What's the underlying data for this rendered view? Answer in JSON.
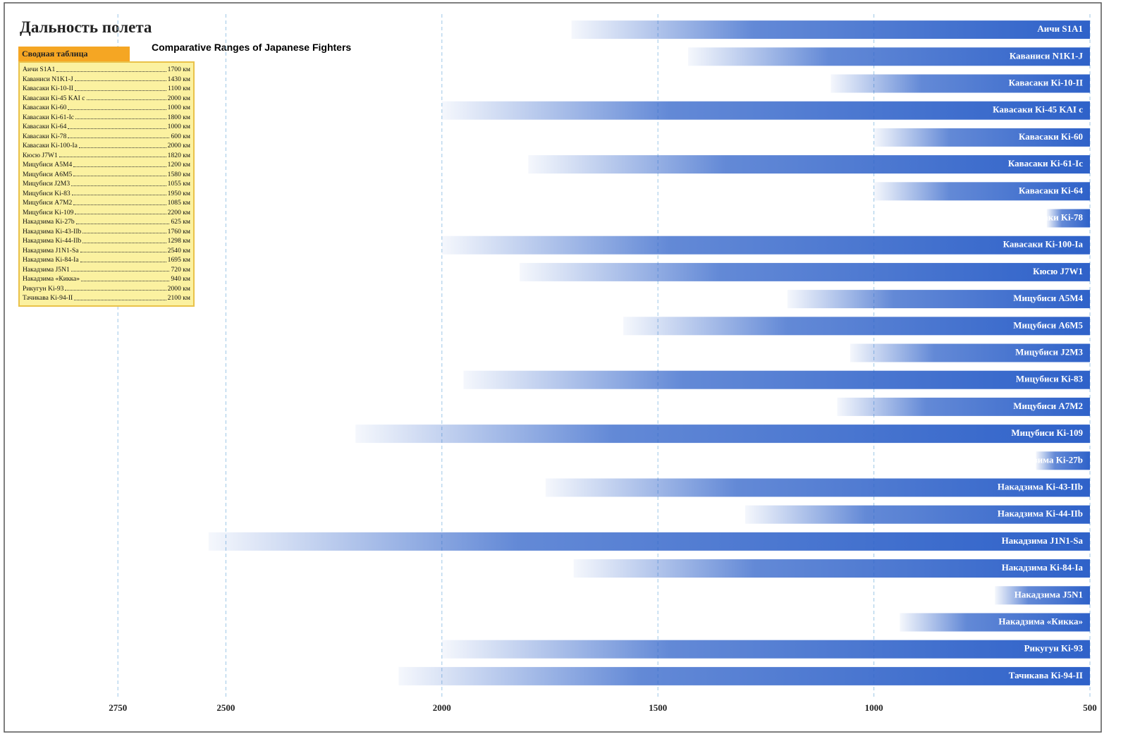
{
  "chart_data": {
    "type": "hbar",
    "title": "Дальность полета",
    "subtitle": "Comparative Ranges of Japanese Fighters",
    "table_title": "Сводная таблица",
    "categories": [
      "Аичи S1A1",
      "Каваниси N1K1-J",
      "Кавасаки Ki-10-II",
      "Кавасаки Ki-45 KAI c",
      "Кавасаки Ki-60",
      "Кавасаки Ki-61-Ic",
      "Кавасаки Ki-64",
      "Кавасаки Ki-78",
      "Кавасаки Ki-100-Ia",
      "Кюсю J7W1",
      "Мицубиси A5M4",
      "Мицубиси A6M5",
      "Мицубиси J2M3",
      "Мицубиси Ki-83",
      "Мицубиси A7M2",
      "Мицубиси Ki-109",
      "Накадзима Ki-27b",
      "Накадзима Ki-43-IIb",
      "Накадзима Ki-44-IIb",
      "Накадзима J1N1-Sa",
      "Накадзима Ki-84-Ia",
      "Накадзима J5N1",
      "Накадзима «Кикка»",
      "Рикугун Ki-93",
      "Тачикава Ki-94-II"
    ],
    "values": [
      1700,
      1430,
      1100,
      2000,
      1000,
      1800,
      1000,
      600,
      2000,
      1820,
      1200,
      1580,
      1055,
      1950,
      1085,
      2200,
      625,
      1760,
      1298,
      2540,
      1695,
      720,
      940,
      2000,
      2100
    ],
    "value_labels": [
      "1700 км",
      "1430 км",
      "1100 км",
      "2000 км",
      "1000 км",
      "1800 км",
      "1000 км",
      "600 км",
      "2000 км",
      "1820 км",
      "1200 км",
      "1580 км",
      "1055 км",
      "1950 км",
      "1085 км",
      "2200 км",
      "625 км",
      "1760 км",
      "1298 км",
      "2540 км",
      "1695 км",
      "720 км",
      "940 км",
      "2000 км",
      "2100 км"
    ],
    "color": "#2f62c9",
    "xlim": [
      3000,
      500
    ],
    "xticks": [
      2750,
      2500,
      2000,
      1500,
      1000,
      500
    ],
    "grid": true
  }
}
